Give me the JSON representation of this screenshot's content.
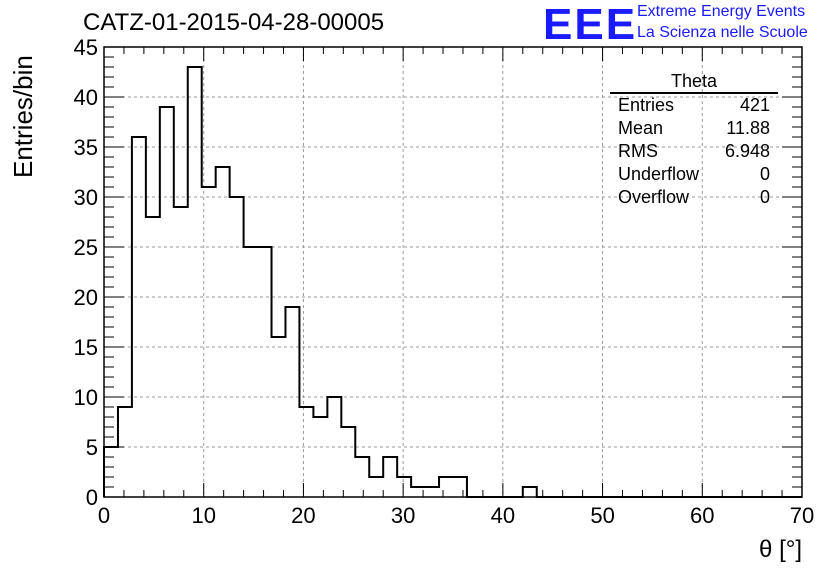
{
  "header": {
    "title": "CATZ-01-2015-04-28-00005",
    "logo_text": "EEE",
    "logo_line1": "Extreme Energy Events",
    "logo_line2": "La Scienza nelle Scuole"
  },
  "stats": {
    "title": "Theta",
    "rows": [
      {
        "label": "Entries",
        "value": "421"
      },
      {
        "label": "Mean",
        "value": "11.88"
      },
      {
        "label": "RMS",
        "value": "6.948"
      },
      {
        "label": "Underflow",
        "value": "0"
      },
      {
        "label": "Overflow",
        "value": "0"
      }
    ]
  },
  "colors": {
    "logo": "#1a1aff",
    "line": "#000000",
    "grid": "#9a9a9a"
  },
  "chart_data": {
    "type": "bar",
    "title": "CATZ-01-2015-04-28-00005",
    "xlabel": "θ [°]",
    "ylabel": "Entries/bin",
    "xlim": [
      0,
      70
    ],
    "ylim": [
      0,
      45
    ],
    "bin_width": 1.4,
    "x_ticks": [
      0,
      10,
      20,
      30,
      40,
      50,
      60,
      70
    ],
    "y_ticks": [
      0,
      5,
      10,
      15,
      20,
      25,
      30,
      35,
      40,
      45
    ],
    "grid": true,
    "values": [
      5,
      9,
      36,
      28,
      39,
      29,
      43,
      31,
      33,
      30,
      25,
      25,
      16,
      19,
      9,
      8,
      10,
      7,
      4,
      2,
      4,
      2,
      1,
      1,
      2,
      2,
      0,
      0,
      0,
      0,
      1,
      0,
      0,
      0,
      0,
      0,
      0,
      0,
      0,
      0,
      0,
      0,
      0,
      0,
      0,
      0,
      0,
      0,
      0,
      0
    ]
  }
}
